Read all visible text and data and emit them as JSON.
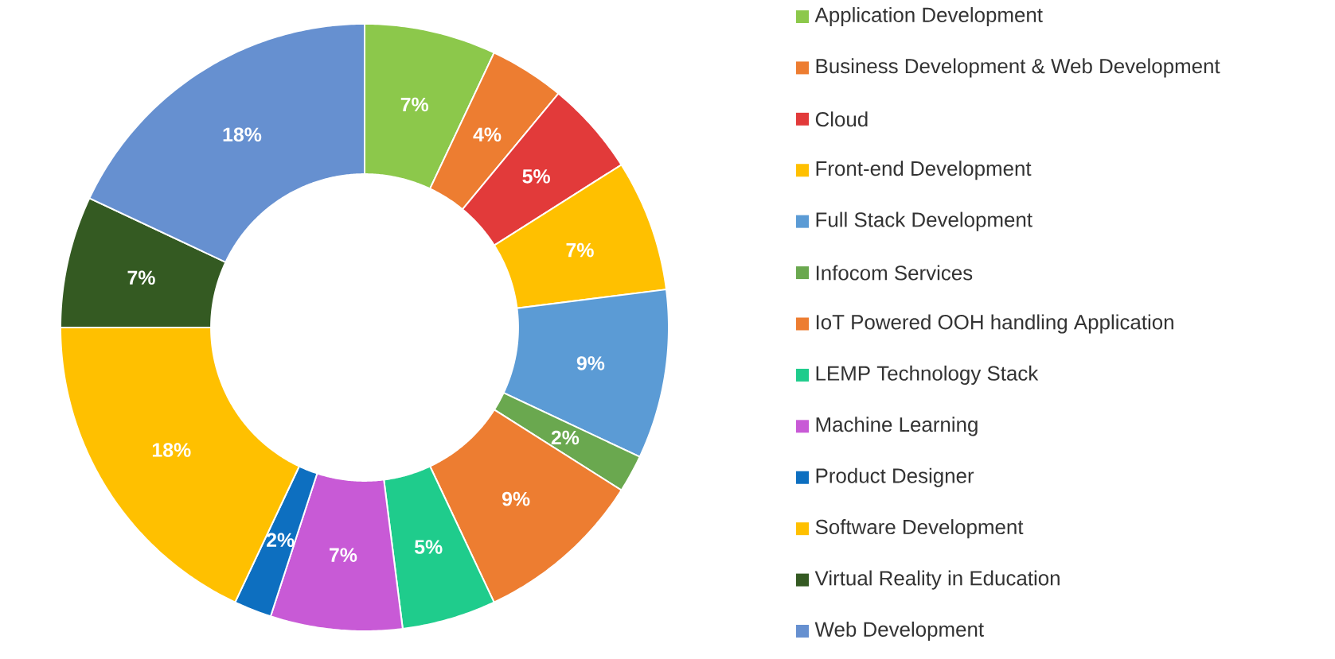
{
  "chart_data": {
    "type": "donut",
    "categories": [
      "Application Development",
      "Business Development & Web Development",
      "Cloud",
      "Front-end Development",
      "Full Stack Development",
      "Infocom Services",
      "IoT Powered OOH handling Application",
      "LEMP Technology Stack",
      "Machine Learning",
      "Product Designer",
      "Software Development",
      "Virtual Reality in Education",
      "Web Development"
    ],
    "values": [
      7,
      4,
      5,
      7,
      9,
      2,
      9,
      5,
      7,
      2,
      18,
      7,
      18
    ],
    "value_labels": [
      "7%",
      "4%",
      "5%",
      "7%",
      "9%",
      "2%",
      "9%",
      "5%",
      "7%",
      "2%",
      "18%",
      "7%",
      "18%"
    ],
    "colors": [
      "#8cc84b",
      "#ed7d31",
      "#e23a3a",
      "#ffc000",
      "#5b9bd5",
      "#6aa84f",
      "#ed7d31",
      "#1fcc8c",
      "#c85ad6",
      "#0d6fc0",
      "#ffc000",
      "#345a22",
      "#6690d0"
    ],
    "legend": "right"
  }
}
